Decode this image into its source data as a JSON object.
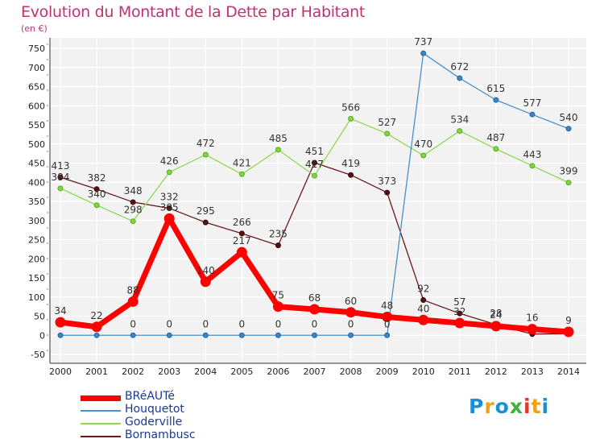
{
  "header": {
    "title": "Evolution du Montant de la Dette par Habitant",
    "subtitle": "(en €)"
  },
  "logo": {
    "text": "Proxiti",
    "colors": [
      "#1a8fd6",
      "#f2a117",
      "#1a8fd6",
      "#3cb13c",
      "#e8352b",
      "#f2a117",
      "#1a8fd6"
    ]
  },
  "chart_data": {
    "type": "line",
    "title": "Evolution du Montant de la Dette par Habitant",
    "subtitle": "(en €)",
    "x": [
      "2000",
      "2001",
      "2002",
      "2003",
      "2004",
      "2005",
      "2006",
      "2007",
      "2008",
      "2009",
      "2010",
      "2011",
      "2012",
      "2013",
      "2014"
    ],
    "y_ticks": [
      "-50",
      "0",
      "50",
      "100",
      "150",
      "200",
      "250",
      "300",
      "350",
      "400",
      "450",
      "500",
      "550",
      "600",
      "650",
      "700",
      "750"
    ],
    "ylim": [
      -50,
      750
    ],
    "grid": true,
    "legend_position": "bottom-left",
    "series": [
      {
        "name": "BRéAUTé",
        "color": "#ff0000",
        "values": [
          34,
          22,
          88,
          305,
          140,
          217,
          75,
          68,
          60,
          48,
          40,
          32,
          24,
          16,
          9
        ],
        "labels": [
          "34",
          "22",
          "88",
          "305",
          "140",
          "217",
          "75",
          "68",
          "60",
          "48",
          "40",
          "32",
          "24",
          "16",
          "9"
        ]
      },
      {
        "name": "Houquetot",
        "color": "#4a90c8",
        "values": [
          0,
          0,
          0,
          0,
          0,
          0,
          0,
          0,
          0,
          0,
          737,
          672,
          615,
          577,
          540
        ],
        "labels": [
          "",
          "",
          "0",
          "0",
          "0",
          "0",
          "0",
          "0",
          "0",
          "0",
          "737",
          "672",
          "615",
          "577",
          "540"
        ]
      },
      {
        "name": "Goderville",
        "color": "#8fd94f",
        "values": [
          384,
          340,
          298,
          426,
          472,
          421,
          485,
          417,
          566,
          527,
          470,
          534,
          487,
          443,
          399
        ],
        "labels": [
          "384",
          "340",
          "298",
          "426",
          "472",
          "421",
          "485",
          "417",
          "566",
          "527",
          "470",
          "534",
          "487",
          "443",
          "399"
        ]
      },
      {
        "name": "Bornambusc",
        "color": "#6b1a1a",
        "values": [
          413,
          382,
          348,
          332,
          295,
          266,
          235,
          451,
          419,
          373,
          92,
          57,
          28,
          3,
          4
        ],
        "labels": [
          "413",
          "382",
          "348",
          "332",
          "295",
          "266",
          "235",
          "451",
          "419",
          "373",
          "92",
          "57",
          "28",
          "",
          ""
        ]
      }
    ]
  }
}
